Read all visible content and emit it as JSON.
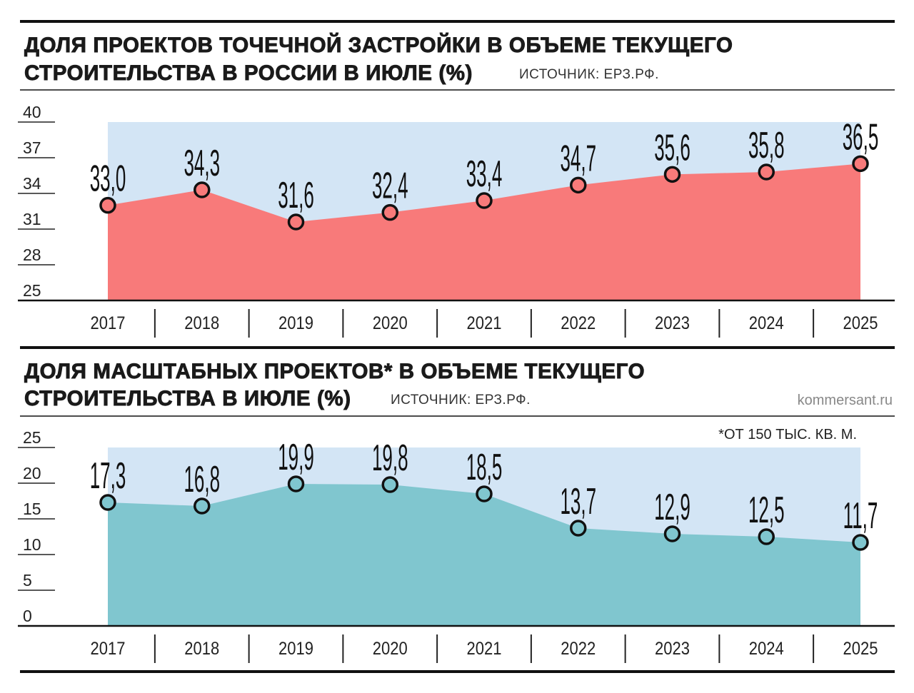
{
  "colors": {
    "background_band": "#d3e5f5",
    "series_top": "#f87a7a",
    "series_bottom": "#80c6cf",
    "marker_stroke": "#111111"
  },
  "brand": "kommersant.ru",
  "chart_data": [
    {
      "type": "area",
      "title_line1": "ДОЛЯ ПРОЕКТОВ ТОЧЕЧНОЙ ЗАСТРОЙКИ В ОБЪЕМЕ ТЕКУЩЕГО",
      "title_line2": "СТРОИТЕЛЬСТВА В РОССИИ В ИЮЛЕ (%)",
      "source": "ИСТОЧНИК: ЕРЗ.РФ.",
      "categories": [
        "2017",
        "2018",
        "2019",
        "2020",
        "2021",
        "2022",
        "2023",
        "2024",
        "2025"
      ],
      "values": [
        33.0,
        34.3,
        31.6,
        32.4,
        33.4,
        34.7,
        35.6,
        35.8,
        36.5
      ],
      "value_labels": [
        "33,0",
        "34,3",
        "31,6",
        "32,4",
        "33,4",
        "34,7",
        "35,6",
        "35,8",
        "36,5"
      ],
      "yticks": [
        "25",
        "28",
        "31",
        "34",
        "37",
        "40"
      ],
      "ylim": [
        25,
        40
      ],
      "grid": false,
      "legend": "none"
    },
    {
      "type": "area",
      "title_line1": "ДОЛЯ МАСШТАБНЫХ ПРОЕКТОВ* В ОБЪЕМЕ ТЕКУЩЕГО",
      "title_line2": "СТРОИТЕЛЬСТВА В ИЮЛЕ (%)",
      "source": "ИСТОЧНИК: ЕРЗ.РФ.",
      "note": "*ОТ 150 ТЫС. КВ. М.",
      "categories": [
        "2017",
        "2018",
        "2019",
        "2020",
        "2021",
        "2022",
        "2023",
        "2024",
        "2025"
      ],
      "values": [
        17.3,
        16.8,
        19.9,
        19.8,
        18.5,
        13.7,
        12.9,
        12.5,
        11.7
      ],
      "value_labels": [
        "17,3",
        "16,8",
        "19,9",
        "19,8",
        "18,5",
        "13,7",
        "12,9",
        "12,5",
        "11,7"
      ],
      "yticks": [
        "0",
        "5",
        "10",
        "15",
        "20",
        "25"
      ],
      "ylim": [
        0,
        25
      ],
      "grid": false,
      "legend": "none"
    }
  ]
}
